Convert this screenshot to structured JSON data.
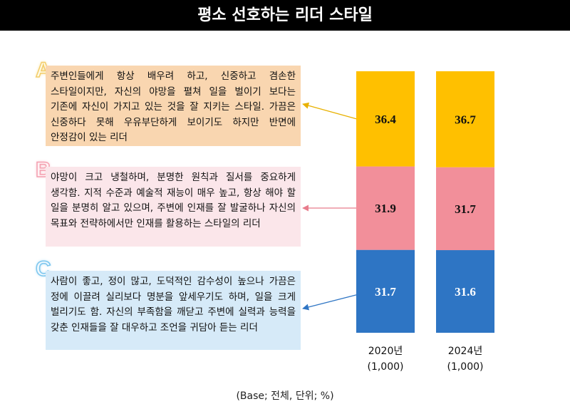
{
  "title": "평소 선호하는 리더 스타일",
  "footnote": "(Base; 전체, 단위; %)",
  "colors": {
    "A": "#FFC000",
    "B": "#F28F9A",
    "C": "#2E75C4"
  },
  "descriptions": [
    {
      "letter": "A",
      "text": "주변인들에게 항상 배우려 하고, 신중하고 겸손한 스타일이지만, 자신의 야망을 펼쳐 일을 벌이기 보다는 기존에 자신이 가지고 있는 것을 잘 지키는 스타일. 가끔은 신중하다 못해 우유부단하게 보이기도 하지만 반면에 안정감이 있는 리더"
    },
    {
      "letter": "B",
      "text": "야망이 크고 냉철하며, 분명한 원칙과 질서를 중요하게 생각함. 지적 수준과 예술적 재능이 매우 높고, 항상 해야 할 일을 분명히 알고 있으며, 주변에 인재를 잘 발굴하나 자신의 목표와 전략하에서만 인재를 활용하는 스타일의 리더"
    },
    {
      "letter": "C",
      "text": "사람이 좋고, 정이 많고, 도덕적인 감수성이 높으나 가끔은 정에 이끌려 실리보다 명분을 앞세우기도 하며, 일을 크게 벌리기도 함. 자신의 부족함을 깨닫고 주변에 실력과 능력을 갖춘 인재들을 잘 대우하고 조언을 귀담아 듣는 리더"
    }
  ],
  "chart_data": {
    "type": "bar",
    "stacked": true,
    "categories": [
      "2020년\n(1,000)",
      "2024년\n(1,000)"
    ],
    "category_lines": [
      [
        "2020년",
        "(1,000)"
      ],
      [
        "2024년",
        "(1,000)"
      ]
    ],
    "series": [
      {
        "name": "C",
        "values": [
          31.7,
          31.6
        ],
        "color": "#2E75C4"
      },
      {
        "name": "B",
        "values": [
          31.9,
          31.7
        ],
        "color": "#F28F9A"
      },
      {
        "name": "A",
        "values": [
          36.4,
          36.7
        ],
        "color": "#FFC000"
      }
    ],
    "ylim": [
      0,
      100
    ]
  }
}
